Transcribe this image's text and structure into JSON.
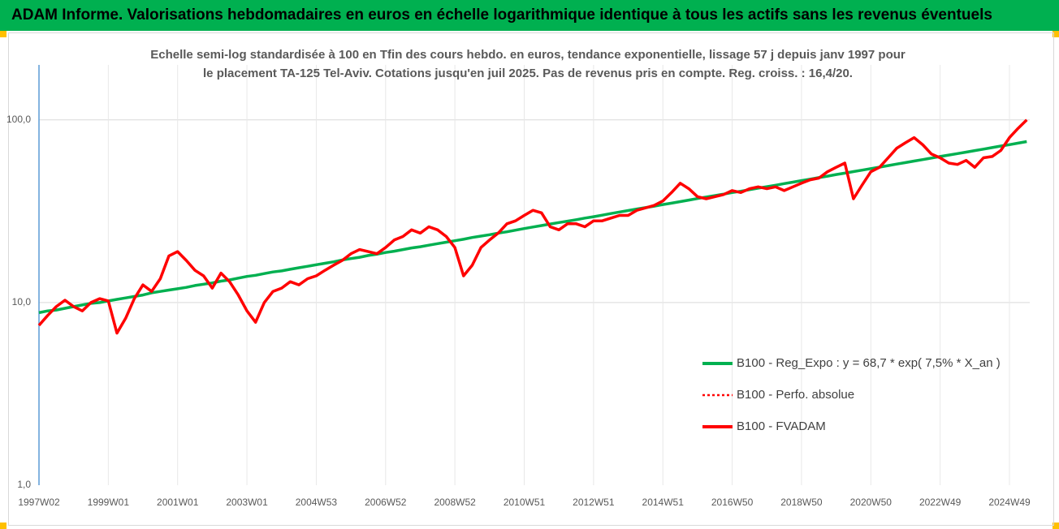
{
  "header": {
    "title": "ADAM Informe. Valorisations hebdomadaires en euros en échelle logarithmique identique à tous les actifs sans les revenus éventuels"
  },
  "chart_data": {
    "type": "line",
    "title": "Echelle semi-log standardisée à 100 en Tfin des cours hebdo. en euros, tendance exponentielle, lissage 57 j depuis janv 1997 pour le placement TA-125 Tel-Aviv. Cotations jusqu'en juil 2025. Pas de revenus pris en compte. Reg. croiss. : 16,4/20.",
    "log_scale": true,
    "grid": true,
    "legend": "right",
    "ylim": [
      1,
      200
    ],
    "yticks": [
      {
        "value": 1,
        "label": "1,0"
      },
      {
        "value": 10,
        "label": "10,0"
      },
      {
        "value": 100,
        "label": "100,0"
      }
    ],
    "categories": [
      "1997W02",
      null,
      null,
      null,
      null,
      null,
      null,
      null,
      "1999W01",
      null,
      null,
      null,
      null,
      null,
      null,
      null,
      "2001W01",
      null,
      null,
      null,
      null,
      null,
      null,
      null,
      "2003W01",
      null,
      null,
      null,
      null,
      null,
      null,
      null,
      "2004W53",
      null,
      null,
      null,
      null,
      null,
      null,
      null,
      "2006W52",
      null,
      null,
      null,
      null,
      null,
      null,
      null,
      "2008W52",
      null,
      null,
      null,
      null,
      null,
      null,
      null,
      "2010W51",
      null,
      null,
      null,
      null,
      null,
      null,
      null,
      "2012W51",
      null,
      null,
      null,
      null,
      null,
      null,
      null,
      "2014W51",
      null,
      null,
      null,
      null,
      null,
      null,
      null,
      "2016W50",
      null,
      null,
      null,
      null,
      null,
      null,
      null,
      "2018W50",
      null,
      null,
      null,
      null,
      null,
      null,
      null,
      "2020W50",
      null,
      null,
      null,
      null,
      null,
      null,
      null,
      "2022W49",
      null,
      null,
      null,
      null,
      null,
      null,
      null,
      "2024W49",
      null,
      null
    ],
    "series": [
      {
        "name": "B100 - Reg_Expo : y = 68,7 * exp( 7,5% *  X_an )",
        "color": "#00b050",
        "style": "solid",
        "values": [
          8.8,
          9.0,
          9.1,
          9.3,
          9.5,
          9.7,
          9.9,
          10.0,
          10.2,
          10.4,
          10.6,
          10.8,
          11.0,
          11.3,
          11.5,
          11.7,
          11.9,
          12.1,
          12.4,
          12.6,
          12.8,
          13.1,
          13.3,
          13.6,
          13.9,
          14.1,
          14.4,
          14.7,
          14.9,
          15.2,
          15.5,
          15.8,
          16.1,
          16.4,
          16.7,
          17.1,
          17.4,
          17.7,
          18.1,
          18.4,
          18.8,
          19.1,
          19.5,
          19.9,
          20.2,
          20.6,
          21.0,
          21.4,
          21.8,
          22.2,
          22.7,
          23.1,
          23.5,
          24.0,
          24.4,
          24.9,
          25.4,
          25.9,
          26.4,
          26.9,
          27.4,
          27.9,
          28.4,
          29.0,
          29.5,
          30.1,
          30.7,
          31.3,
          31.9,
          32.5,
          33.1,
          33.7,
          34.4,
          35.0,
          35.7,
          36.4,
          37.1,
          37.8,
          38.5,
          39.2,
          40.0,
          40.7,
          41.5,
          42.3,
          43.1,
          43.9,
          44.8,
          45.6,
          46.5,
          47.4,
          48.3,
          49.2,
          50.2,
          51.1,
          52.1,
          53.1,
          54.1,
          55.1,
          56.2,
          57.3,
          58.4,
          59.5,
          60.6,
          61.8,
          63.0,
          64.2,
          65.4,
          66.6,
          67.9,
          69.2,
          70.5,
          71.9,
          73.2,
          74.6,
          76.1
        ]
      },
      {
        "name": "B100 - Perfo. absolue",
        "color": "#ff0000",
        "style": "dotted",
        "values": [
          7.5,
          8.5,
          9.5,
          10.3,
          9.5,
          9.0,
          10.0,
          10.5,
          10.2,
          6.8,
          8.2,
          10.5,
          12.5,
          11.5,
          13.5,
          18,
          19,
          17,
          15,
          14,
          12,
          14.5,
          13,
          11,
          9,
          7.8,
          10,
          11.5,
          12,
          13,
          12.5,
          13.5,
          14,
          15,
          16,
          17,
          18.5,
          19.5,
          19,
          18.5,
          20,
          22,
          23,
          25,
          24,
          26,
          25,
          23,
          20,
          14,
          16,
          20,
          22,
          24,
          27,
          28,
          30,
          32,
          31,
          26,
          25,
          27,
          27,
          26,
          28,
          28,
          29,
          30,
          30,
          32,
          33,
          34,
          36,
          40,
          45,
          42,
          38,
          37,
          38,
          39,
          41,
          40,
          42,
          43,
          42,
          43,
          41,
          43,
          45,
          47,
          48,
          52,
          55,
          58,
          37,
          44,
          52,
          55,
          62,
          70,
          75,
          80,
          73,
          65,
          62,
          58,
          57,
          60,
          55,
          62,
          63,
          68,
          80,
          90,
          100
        ]
      },
      {
        "name": "B100 - FVADAM",
        "color": "#ff0000",
        "style": "solid",
        "values": [
          7.5,
          8.5,
          9.5,
          10.3,
          9.5,
          9.0,
          10.0,
          10.5,
          10.2,
          6.8,
          8.2,
          10.5,
          12.5,
          11.5,
          13.5,
          18,
          19,
          17,
          15,
          14,
          12,
          14.5,
          13,
          11,
          9,
          7.8,
          10,
          11.5,
          12,
          13,
          12.5,
          13.5,
          14,
          15,
          16,
          17,
          18.5,
          19.5,
          19,
          18.5,
          20,
          22,
          23,
          25,
          24,
          26,
          25,
          23,
          20,
          14,
          16,
          20,
          22,
          24,
          27,
          28,
          30,
          32,
          31,
          26,
          25,
          27,
          27,
          26,
          28,
          28,
          29,
          30,
          30,
          32,
          33,
          34,
          36,
          40,
          45,
          42,
          38,
          37,
          38,
          39,
          41,
          40,
          42,
          43,
          42,
          43,
          41,
          43,
          45,
          47,
          48,
          52,
          55,
          58,
          37,
          44,
          52,
          55,
          62,
          70,
          75,
          80,
          73,
          65,
          62,
          58,
          57,
          60,
          55,
          62,
          63,
          68,
          80,
          90,
          100
        ]
      }
    ]
  }
}
